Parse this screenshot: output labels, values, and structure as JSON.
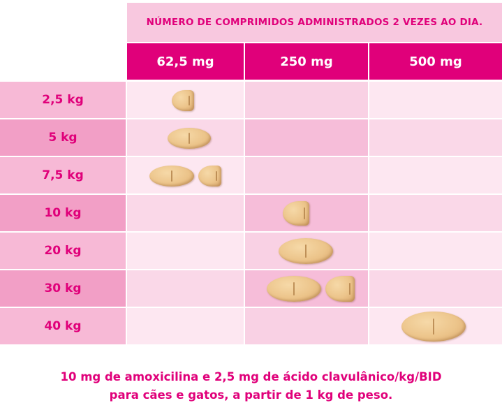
{
  "header": {
    "title": "NÚMERO DE COMPRIMIDOS ADMINISTRADOS 2 VEZES AO DIA.",
    "columns": [
      "62,5 mg",
      "250 mg",
      "500 mg"
    ]
  },
  "rows": [
    {
      "weight": "2,5 kg",
      "tablets": {
        "62,5 mg": 0.5,
        "250 mg": 0,
        "500 mg": 0
      }
    },
    {
      "weight": "5 kg",
      "tablets": {
        "62,5 mg": 1,
        "250 mg": 0,
        "500 mg": 0
      }
    },
    {
      "weight": "7,5 kg",
      "tablets": {
        "62,5 mg": 1.5,
        "250 mg": 0,
        "500 mg": 0
      }
    },
    {
      "weight": "10 kg",
      "tablets": {
        "62,5 mg": 0,
        "250 mg": 0.5,
        "500 mg": 0
      }
    },
    {
      "weight": "20 kg",
      "tablets": {
        "62,5 mg": 0,
        "250 mg": 1,
        "500 mg": 0
      }
    },
    {
      "weight": "30 kg",
      "tablets": {
        "62,5 mg": 0,
        "250 mg": 1.5,
        "500 mg": 0
      }
    },
    {
      "weight": "40 kg",
      "tablets": {
        "62,5 mg": 0,
        "250 mg": 0,
        "500 mg": 1
      }
    }
  ],
  "footer": {
    "line1": "10 mg de amoxicilina e 2,5 mg de ácido clavulânico/kg/BID",
    "line2": "para cães e gatos, a partir de 1 kg de peso."
  },
  "colors": {
    "accent": "#e0007a",
    "tablet": "#ecc48a"
  }
}
